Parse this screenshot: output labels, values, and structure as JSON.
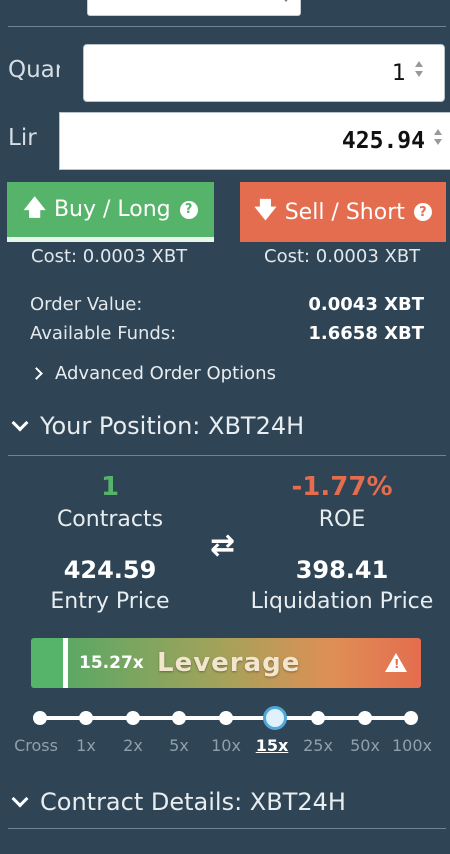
{
  "colors": {
    "background": "#2f4454",
    "buy": "#56b46a",
    "sell": "#e46d4f",
    "positive": "#56b46a",
    "negative": "#e46d4f"
  },
  "quantity": {
    "label": "Quar",
    "value": "1"
  },
  "limit": {
    "label": "Lir",
    "value": "425.94"
  },
  "buy": {
    "label": "Buy / Long",
    "icon": "arrow-up-icon",
    "help": "?",
    "cost": "Cost: 0.0003 XBT"
  },
  "sell": {
    "label": "Sell / Short",
    "icon": "arrow-down-icon",
    "help": "?",
    "cost": "Cost: 0.0003 XBT"
  },
  "summary": {
    "order_value_label": "Order Value:",
    "order_value": "0.0043 XBT",
    "available_label": "Available Funds:",
    "available": "1.6658 XBT"
  },
  "advanced_label": "Advanced Order Options",
  "position": {
    "heading": "Your Position: XBT24H",
    "contracts": "1",
    "contracts_label": "Contracts",
    "roe": "-1.77%",
    "roe_label": "ROE",
    "entry_price": "424.59",
    "entry_label": "Entry Price",
    "liq_price": "398.41",
    "liq_label": "Liquidation Price",
    "swap_icon": "swap-arrows-icon"
  },
  "leverage": {
    "value": "15.27x",
    "label": "Leverage",
    "level": 0.0863,
    "warning": "!",
    "ticks": [
      "Cross",
      "1x",
      "2x",
      "5x",
      "10x",
      "15x",
      "25x",
      "50x",
      "100x"
    ],
    "selected_index": 5
  },
  "contract_details": {
    "heading": "Contract Details: XBT24H"
  }
}
